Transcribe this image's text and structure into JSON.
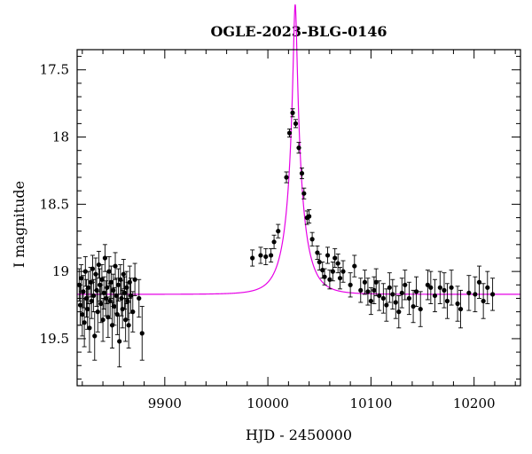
{
  "chart_data": {
    "type": "scatter",
    "title": "OGLE-2023-BLG-0146",
    "xlabel": "HJD - 2450000",
    "ylabel": "I magnitude",
    "xlim": [
      9815,
      10245
    ],
    "ylim": [
      19.85,
      17.35
    ],
    "y_inverted": true,
    "x_ticks": [
      9900,
      10000,
      10100,
      10200
    ],
    "y_ticks": [
      17.5,
      18,
      18.5,
      19,
      19.5
    ],
    "x_tick_labels": [
      "9900",
      "10000",
      "10100",
      "10200"
    ],
    "y_tick_labels": [
      "17.5",
      "18",
      "18.5",
      "19",
      "19.5"
    ],
    "grid": false,
    "model": {
      "name": "",
      "color": "#e600e6",
      "baseline_mag": 19.17,
      "t0": 10026.5,
      "u0": 0.09,
      "tE": 18,
      "fs": 0.62
    },
    "series": [
      {
        "name": "",
        "color": "#000000",
        "points": [
          {
            "x": 9817,
            "y": 19.1,
            "err": 0.12
          },
          {
            "x": 9818,
            "y": 19.25,
            "err": 0.15
          },
          {
            "x": 9819,
            "y": 19.05,
            "err": 0.1
          },
          {
            "x": 9820,
            "y": 19.32,
            "err": 0.16
          },
          {
            "x": 9821,
            "y": 19.15,
            "err": 0.12
          },
          {
            "x": 9822,
            "y": 19.38,
            "err": 0.18
          },
          {
            "x": 9823,
            "y": 19.0,
            "err": 0.11
          },
          {
            "x": 9824,
            "y": 19.2,
            "err": 0.14
          },
          {
            "x": 9825,
            "y": 19.28,
            "err": 0.15
          },
          {
            "x": 9826,
            "y": 19.12,
            "err": 0.12
          },
          {
            "x": 9827,
            "y": 19.42,
            "err": 0.18
          },
          {
            "x": 9828,
            "y": 19.08,
            "err": 0.11
          },
          {
            "x": 9829,
            "y": 19.22,
            "err": 0.13
          },
          {
            "x": 9830,
            "y": 18.98,
            "err": 0.1
          },
          {
            "x": 9831,
            "y": 19.18,
            "err": 0.12
          },
          {
            "x": 9832,
            "y": 19.48,
            "err": 0.18
          },
          {
            "x": 9833,
            "y": 19.02,
            "err": 0.12
          },
          {
            "x": 9834,
            "y": 19.14,
            "err": 0.12
          },
          {
            "x": 9835,
            "y": 19.3,
            "err": 0.15
          },
          {
            "x": 9836,
            "y": 18.95,
            "err": 0.1
          },
          {
            "x": 9837,
            "y": 19.1,
            "err": 0.12
          },
          {
            "x": 9838,
            "y": 19.24,
            "err": 0.14
          },
          {
            "x": 9839,
            "y": 19.06,
            "err": 0.11
          },
          {
            "x": 9840,
            "y": 19.36,
            "err": 0.16
          },
          {
            "x": 9841,
            "y": 19.16,
            "err": 0.12
          },
          {
            "x": 9842,
            "y": 18.9,
            "err": 0.1
          },
          {
            "x": 9843,
            "y": 19.2,
            "err": 0.13
          },
          {
            "x": 9844,
            "y": 19.12,
            "err": 0.12
          },
          {
            "x": 9845,
            "y": 19.34,
            "err": 0.15
          },
          {
            "x": 9846,
            "y": 19.0,
            "err": 0.11
          },
          {
            "x": 9847,
            "y": 19.22,
            "err": 0.13
          },
          {
            "x": 9848,
            "y": 19.08,
            "err": 0.12
          },
          {
            "x": 9849,
            "y": 19.4,
            "err": 0.17
          },
          {
            "x": 9850,
            "y": 19.14,
            "err": 0.12
          },
          {
            "x": 9851,
            "y": 19.26,
            "err": 0.14
          },
          {
            "x": 9852,
            "y": 18.96,
            "err": 0.1
          },
          {
            "x": 9853,
            "y": 19.18,
            "err": 0.13
          },
          {
            "x": 9854,
            "y": 19.32,
            "err": 0.15
          },
          {
            "x": 9855,
            "y": 19.1,
            "err": 0.12
          },
          {
            "x": 9856,
            "y": 19.52,
            "err": 0.19
          },
          {
            "x": 9857,
            "y": 19.06,
            "err": 0.11
          },
          {
            "x": 9858,
            "y": 19.2,
            "err": 0.13
          },
          {
            "x": 9859,
            "y": 19.28,
            "err": 0.14
          },
          {
            "x": 9860,
            "y": 19.02,
            "err": 0.11
          },
          {
            "x": 9861,
            "y": 19.16,
            "err": 0.12
          },
          {
            "x": 9862,
            "y": 19.36,
            "err": 0.16
          },
          {
            "x": 9863,
            "y": 19.12,
            "err": 0.12
          },
          {
            "x": 9864,
            "y": 19.22,
            "err": 0.14
          },
          {
            "x": 9865,
            "y": 19.4,
            "err": 0.17
          },
          {
            "x": 9866,
            "y": 19.08,
            "err": 0.12
          },
          {
            "x": 9867,
            "y": 19.18,
            "err": 0.13
          },
          {
            "x": 9869,
            "y": 19.3,
            "err": 0.15
          },
          {
            "x": 9871,
            "y": 19.06,
            "err": 0.12
          },
          {
            "x": 9875,
            "y": 19.2,
            "err": 0.14
          },
          {
            "x": 9878,
            "y": 19.46,
            "err": 0.2
          },
          {
            "x": 9985,
            "y": 18.9,
            "err": 0.06
          },
          {
            "x": 9993,
            "y": 18.88,
            "err": 0.06
          },
          {
            "x": 9998,
            "y": 18.89,
            "err": 0.06
          },
          {
            "x": 10003,
            "y": 18.88,
            "err": 0.05
          },
          {
            "x": 10006,
            "y": 18.78,
            "err": 0.05
          },
          {
            "x": 10010,
            "y": 18.7,
            "err": 0.05
          },
          {
            "x": 10018,
            "y": 18.3,
            "err": 0.04
          },
          {
            "x": 10021,
            "y": 17.97,
            "err": 0.03
          },
          {
            "x": 10024,
            "y": 17.82,
            "err": 0.03
          },
          {
            "x": 10027,
            "y": 17.9,
            "err": 0.03
          },
          {
            "x": 10030,
            "y": 18.08,
            "err": 0.04
          },
          {
            "x": 10033,
            "y": 18.27,
            "err": 0.04
          },
          {
            "x": 10035,
            "y": 18.42,
            "err": 0.04
          },
          {
            "x": 10038,
            "y": 18.6,
            "err": 0.05
          },
          {
            "x": 10040,
            "y": 18.59,
            "err": 0.05
          },
          {
            "x": 10043,
            "y": 18.76,
            "err": 0.05
          },
          {
            "x": 10048,
            "y": 18.86,
            "err": 0.05
          },
          {
            "x": 10050,
            "y": 18.93,
            "err": 0.06
          },
          {
            "x": 10053,
            "y": 18.99,
            "err": 0.06
          },
          {
            "x": 10055,
            "y": 19.04,
            "err": 0.06
          },
          {
            "x": 10058,
            "y": 18.88,
            "err": 0.06
          },
          {
            "x": 10060,
            "y": 19.06,
            "err": 0.07
          },
          {
            "x": 10063,
            "y": 19.0,
            "err": 0.07
          },
          {
            "x": 10065,
            "y": 18.9,
            "err": 0.07
          },
          {
            "x": 10068,
            "y": 18.94,
            "err": 0.07
          },
          {
            "x": 10070,
            "y": 19.05,
            "err": 0.08
          },
          {
            "x": 10073,
            "y": 19.0,
            "err": 0.08
          },
          {
            "x": 10080,
            "y": 19.1,
            "err": 0.09
          },
          {
            "x": 10084,
            "y": 18.96,
            "err": 0.08
          },
          {
            "x": 10090,
            "y": 19.14,
            "err": 0.09
          },
          {
            "x": 10094,
            "y": 19.08,
            "err": 0.09
          },
          {
            "x": 10097,
            "y": 19.15,
            "err": 0.1
          },
          {
            "x": 10100,
            "y": 19.22,
            "err": 0.1
          },
          {
            "x": 10103,
            "y": 19.14,
            "err": 0.1
          },
          {
            "x": 10105,
            "y": 19.08,
            "err": 0.1
          },
          {
            "x": 10108,
            "y": 19.18,
            "err": 0.11
          },
          {
            "x": 10112,
            "y": 19.2,
            "err": 0.11
          },
          {
            "x": 10115,
            "y": 19.25,
            "err": 0.12
          },
          {
            "x": 10118,
            "y": 19.12,
            "err": 0.11
          },
          {
            "x": 10121,
            "y": 19.17,
            "err": 0.11
          },
          {
            "x": 10124,
            "y": 19.23,
            "err": 0.12
          },
          {
            "x": 10127,
            "y": 19.3,
            "err": 0.12
          },
          {
            "x": 10130,
            "y": 19.16,
            "err": 0.11
          },
          {
            "x": 10133,
            "y": 19.1,
            "err": 0.11
          },
          {
            "x": 10137,
            "y": 19.2,
            "err": 0.12
          },
          {
            "x": 10141,
            "y": 19.26,
            "err": 0.12
          },
          {
            "x": 10144,
            "y": 19.15,
            "err": 0.11
          },
          {
            "x": 10148,
            "y": 19.28,
            "err": 0.13
          },
          {
            "x": 10155,
            "y": 19.1,
            "err": 0.11
          },
          {
            "x": 10158,
            "y": 19.12,
            "err": 0.12
          },
          {
            "x": 10162,
            "y": 19.18,
            "err": 0.12
          },
          {
            "x": 10167,
            "y": 19.12,
            "err": 0.12
          },
          {
            "x": 10171,
            "y": 19.14,
            "err": 0.13
          },
          {
            "x": 10174,
            "y": 19.22,
            "err": 0.13
          },
          {
            "x": 10178,
            "y": 19.12,
            "err": 0.13
          },
          {
            "x": 10184,
            "y": 19.24,
            "err": 0.13
          },
          {
            "x": 10187,
            "y": 19.28,
            "err": 0.14
          },
          {
            "x": 10195,
            "y": 19.16,
            "err": 0.13
          },
          {
            "x": 10201,
            "y": 19.17,
            "err": 0.13
          },
          {
            "x": 10205,
            "y": 19.08,
            "err": 0.12
          },
          {
            "x": 10209,
            "y": 19.22,
            "err": 0.13
          },
          {
            "x": 10213,
            "y": 19.12,
            "err": 0.12
          },
          {
            "x": 10218,
            "y": 19.17,
            "err": 0.12
          }
        ]
      }
    ]
  }
}
